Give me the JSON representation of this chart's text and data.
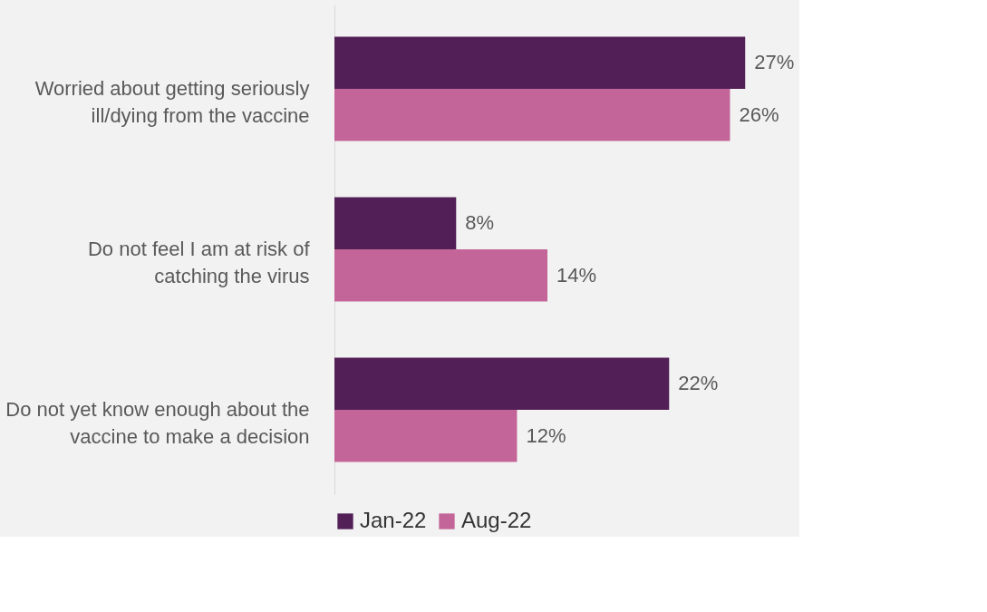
{
  "chart_data": {
    "type": "bar",
    "orientation": "horizontal",
    "categories": [
      "Worried about getting seriously ill/dying from the vaccine",
      "Do not feel I am at risk of catching the virus",
      "Do not yet know enough about the vaccine to make a decision"
    ],
    "series": [
      {
        "name": "Jan-22",
        "color": "#521f57",
        "values": [
          27,
          8,
          22
        ],
        "value_labels": [
          "27%",
          "8%",
          "22%"
        ]
      },
      {
        "name": "Aug-22",
        "color": "#c36598",
        "values": [
          26,
          14,
          12
        ],
        "value_labels": [
          "26%",
          "14%",
          "12%"
        ]
      }
    ],
    "legend": "bottom",
    "grid": false
  }
}
